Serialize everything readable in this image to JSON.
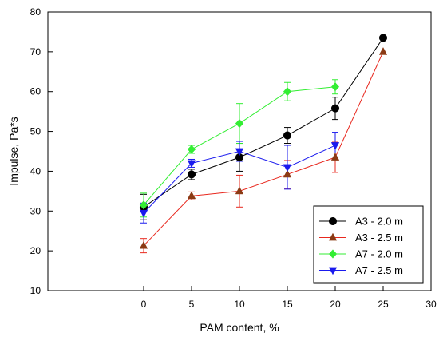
{
  "chart_data": {
    "type": "line",
    "title": "",
    "xlabel": "PAM content, %",
    "ylabel": "Impulse, Pa*s",
    "xlim": [
      -10,
      30
    ],
    "ylim": [
      10,
      80
    ],
    "xticks": [
      0,
      5,
      10,
      15,
      20,
      25,
      30
    ],
    "yticks": [
      10,
      20,
      30,
      40,
      50,
      60,
      70,
      80
    ],
    "grid": false,
    "legend_position": "bottom-right",
    "series": [
      {
        "name": "A3 - 2.0 m",
        "color": "#000000",
        "marker": "circle",
        "x": [
          0,
          5,
          10,
          15,
          20,
          25
        ],
        "y": [
          31.0,
          39.2,
          43.5,
          49.0,
          55.8,
          73.5
        ],
        "error": [
          3.2,
          1.3,
          3.5,
          2.0,
          2.8,
          0.0
        ]
      },
      {
        "name": "A3 - 2.5 m",
        "color": "#e8281e",
        "marker_color": "#8b3a14",
        "marker": "triangle-up",
        "x": [
          0,
          5,
          10,
          15,
          20,
          25
        ],
        "y": [
          21.3,
          33.8,
          35.0,
          39.2,
          43.5,
          70.0
        ],
        "error": [
          1.8,
          1.0,
          4.0,
          3.5,
          3.8,
          0.0
        ]
      },
      {
        "name": "A7 - 2.0 m",
        "color": "#33ee33",
        "marker": "diamond",
        "x": [
          0,
          5,
          10,
          15,
          20
        ],
        "y": [
          31.5,
          45.5,
          52.0,
          60.0,
          61.2
        ],
        "error": [
          3.0,
          1.0,
          5.0,
          2.3,
          1.8
        ]
      },
      {
        "name": "A7 - 2.5 m",
        "color": "#1a1aee",
        "marker": "triangle-down",
        "x": [
          0,
          5,
          10,
          15,
          20
        ],
        "y": [
          29.5,
          42.0,
          45.0,
          41.0,
          46.5
        ],
        "error": [
          2.5,
          1.0,
          2.5,
          5.5,
          3.3
        ]
      }
    ]
  }
}
